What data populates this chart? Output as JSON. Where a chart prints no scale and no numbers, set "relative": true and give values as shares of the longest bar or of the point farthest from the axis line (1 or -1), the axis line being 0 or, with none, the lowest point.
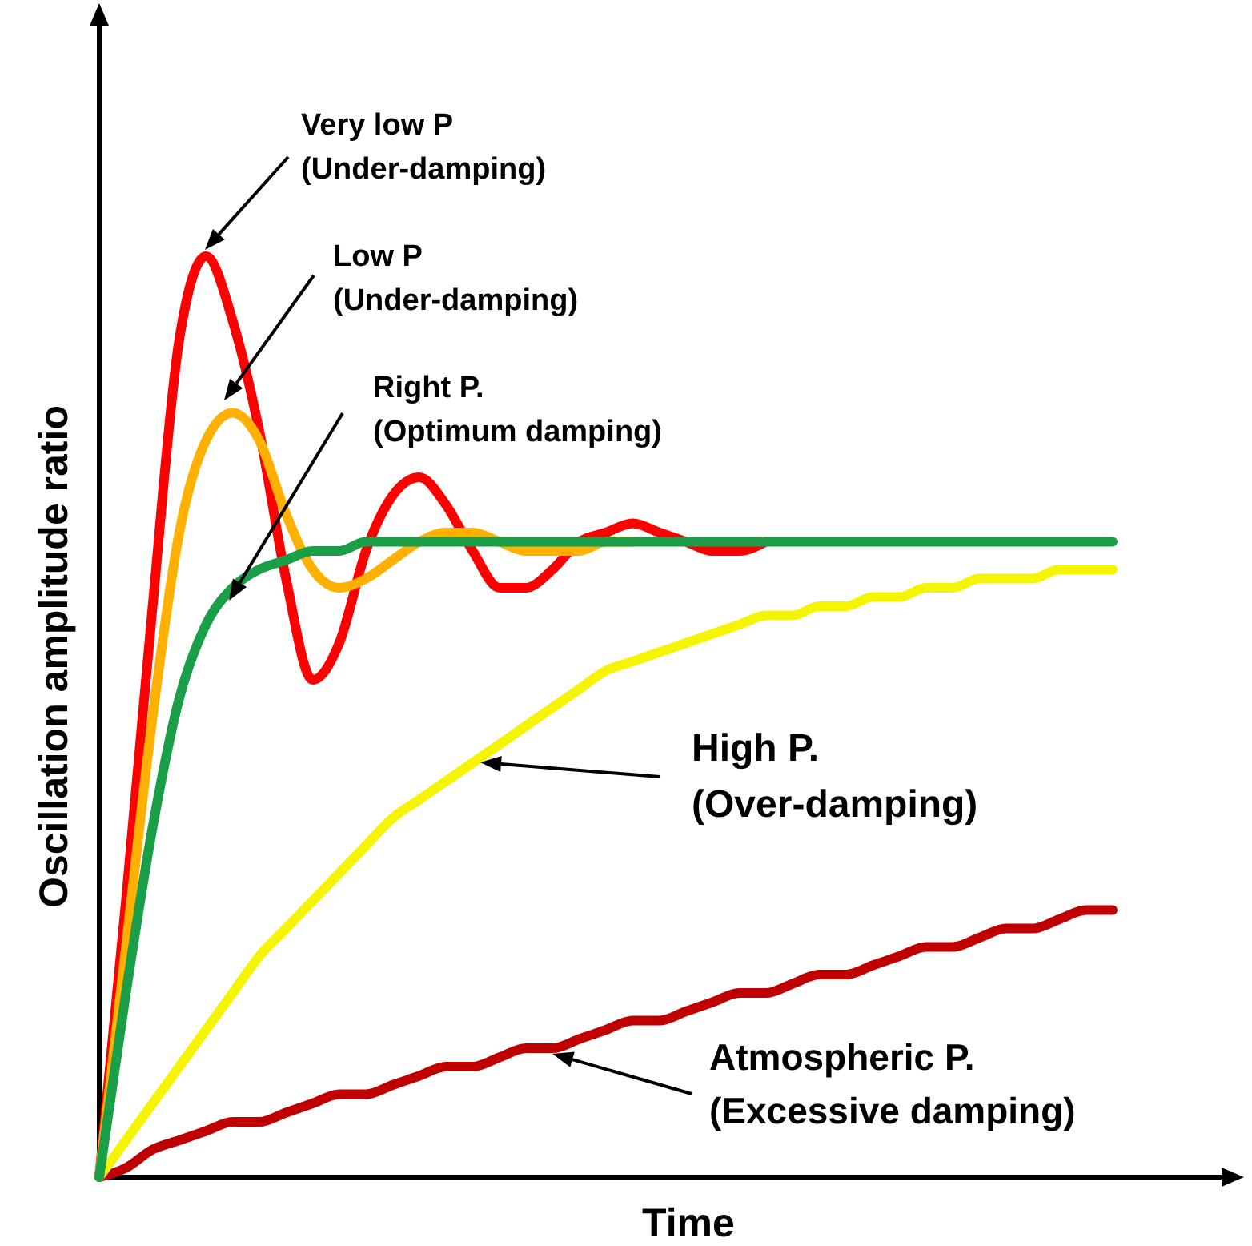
{
  "chart_data": {
    "type": "line",
    "relative": true,
    "xlabel": "Time",
    "ylabel": "Oscillation amplitude ratio",
    "grid": false,
    "marker": "none",
    "line_style": "solid",
    "annotations": [
      "Very low P (Under-damping)",
      "Low P (Under-damping)",
      "Right P. (Optimum damping)",
      "High P. (Over-damping)",
      "Atmospheric P. (Excessive damping)"
    ],
    "categories": [
      null,
      null,
      null,
      null,
      null,
      null,
      null,
      null,
      null,
      null,
      null,
      null,
      null,
      null,
      null,
      null,
      null,
      null,
      null,
      null,
      null,
      null,
      null,
      null,
      null,
      null,
      null,
      null,
      null,
      null,
      null,
      null,
      null,
      null,
      null,
      null,
      null,
      null,
      null
    ],
    "series": [
      {
        "color": "#c00000",
        "values": [
          0,
          0.01,
          0.03,
          0.04,
          0.05,
          0.06,
          0.06,
          0.07,
          0.08,
          0.09,
          0.09,
          0.1,
          0.11,
          0.12,
          0.12,
          0.13,
          0.14,
          0.14,
          0.15,
          0.16,
          0.17,
          0.17,
          0.18,
          0.19,
          0.2,
          0.2,
          0.21,
          0.22,
          0.22,
          0.23,
          0.24,
          0.25,
          0.25,
          0.26,
          0.27,
          0.27,
          0.28,
          0.29,
          0.29
        ]
      },
      {
        "color": "#f5f500",
        "values": [
          0,
          0.04,
          0.08,
          0.12,
          0.16,
          0.2,
          0.24,
          0.27,
          0.3,
          0.33,
          0.36,
          0.39,
          0.41,
          0.43,
          0.45,
          0.47,
          0.49,
          0.51,
          0.53,
          0.55,
          0.56,
          0.57,
          0.58,
          0.59,
          0.6,
          0.61,
          0.61,
          0.62,
          0.62,
          0.63,
          0.63,
          0.64,
          0.64,
          0.65,
          0.65,
          0.65,
          0.66,
          0.66,
          0.66
        ]
      },
      {
        "color": "#ff0000",
        "values": [
          0,
          0.3,
          0.62,
          0.91,
          1.0,
          0.93,
          0.81,
          0.65,
          0.54,
          0.58,
          0.68,
          0.74,
          0.76,
          0.73,
          0.68,
          0.64,
          0.64,
          0.66,
          0.69,
          0.7,
          0.71,
          0.7,
          0.69,
          0.68,
          0.68,
          0.69,
          null,
          null,
          null,
          null,
          null,
          null,
          null,
          null,
          null,
          null,
          null,
          null,
          null
        ]
      },
      {
        "color": "#ffb000",
        "values": [
          0,
          0.25,
          0.5,
          0.7,
          0.8,
          0.83,
          0.8,
          0.72,
          0.66,
          0.64,
          0.65,
          0.67,
          0.69,
          0.7,
          0.7,
          0.69,
          0.68,
          0.68,
          0.68,
          0.69,
          0.69,
          null,
          null,
          null,
          null,
          null,
          null,
          null,
          null,
          null,
          null,
          null,
          null,
          null,
          null,
          null,
          null,
          null,
          null
        ]
      },
      {
        "color": "#1a9e48",
        "values": [
          0,
          0.2,
          0.38,
          0.52,
          0.6,
          0.64,
          0.66,
          0.67,
          0.68,
          0.68,
          0.69,
          0.69,
          0.69,
          0.69,
          0.69,
          0.69,
          0.69,
          0.69,
          0.69,
          0.69,
          0.69,
          0.69,
          0.69,
          0.69,
          0.69,
          0.69,
          0.69,
          0.69,
          0.69,
          0.69,
          0.69,
          0.69,
          0.69,
          0.69,
          0.69,
          0.69,
          0.69,
          0.69,
          0.69
        ]
      }
    ]
  }
}
